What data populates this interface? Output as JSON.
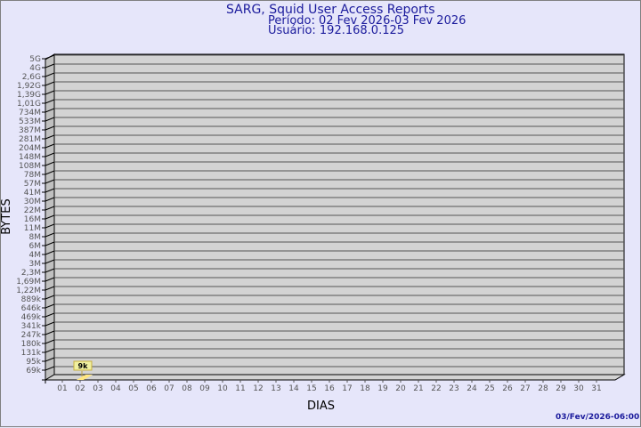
{
  "chart_data": {
    "type": "bar",
    "title": "SARG, Squid User Access Reports",
    "subtitle": [
      "Período: 02 Fev 2026-03 Fev 2026",
      "Usuário: 192.168.0.125"
    ],
    "xlabel": "DIAS",
    "ylabel": "BYTES",
    "y_scale": "log",
    "y_tick_labels": [
      "5G",
      "4G",
      "2,6G",
      "1,92G",
      "1,39G",
      "1,01G",
      "734M",
      "533M",
      "387M",
      "281M",
      "204M",
      "148M",
      "108M",
      "78M",
      "57M",
      "41M",
      "30M",
      "22M",
      "16M",
      "11M",
      "8M",
      "6M",
      "4M",
      "3M",
      "2,3M",
      "1,69M",
      "1,22M",
      "889k",
      "646k",
      "469k",
      "341k",
      "247k",
      "180k",
      "131k",
      "95k",
      "69k"
    ],
    "categories": [
      "01",
      "02",
      "03",
      "04",
      "05",
      "06",
      "07",
      "08",
      "09",
      "10",
      "11",
      "12",
      "13",
      "14",
      "15",
      "16",
      "17",
      "18",
      "19",
      "20",
      "21",
      "22",
      "23",
      "24",
      "25",
      "26",
      "27",
      "28",
      "29",
      "30",
      "31"
    ],
    "series": [
      {
        "values": {
          "02": 9000
        }
      }
    ],
    "data_labels": {
      "02": "9k"
    },
    "grid": true,
    "colors": {
      "bar": "#ffe680",
      "label_bg": "#f0f0a0",
      "wall": "#d3d3d3",
      "side": "#c0c0c0",
      "text": "#1a1a9c"
    }
  },
  "footer": {
    "timestamp": "03/Fev/2026-06:00"
  }
}
